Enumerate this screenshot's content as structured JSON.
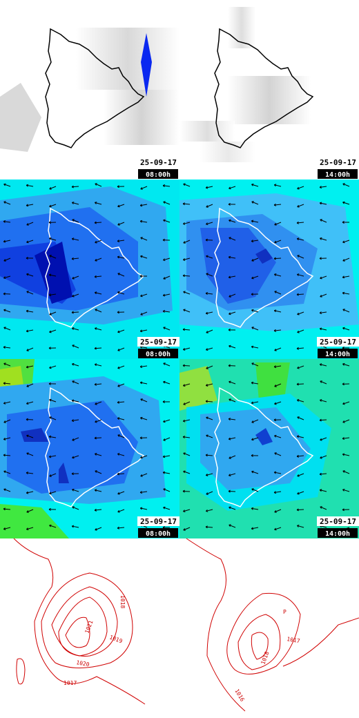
{
  "rows": [
    {
      "panels": [
        {
          "date": "25-09-17",
          "time": "08:00h"
        },
        {
          "date": "25-09-17",
          "time": "14:00h"
        }
      ]
    },
    {
      "panels": [
        {
          "date": "25-09-17",
          "time": "08:00h"
        },
        {
          "date": "25-09-17",
          "time": "14:00h"
        }
      ]
    },
    {
      "panels": [
        {
          "date": "25-09-17",
          "time": "08:00h"
        },
        {
          "date": "25-09-17",
          "time": "14:00h"
        }
      ]
    }
  ],
  "pressure": {
    "left_labels": [
      "1018",
      "1021",
      "1019",
      "1020",
      "1017"
    ],
    "right_labels": [
      "P",
      "1017",
      "1018",
      "1016"
    ]
  }
}
